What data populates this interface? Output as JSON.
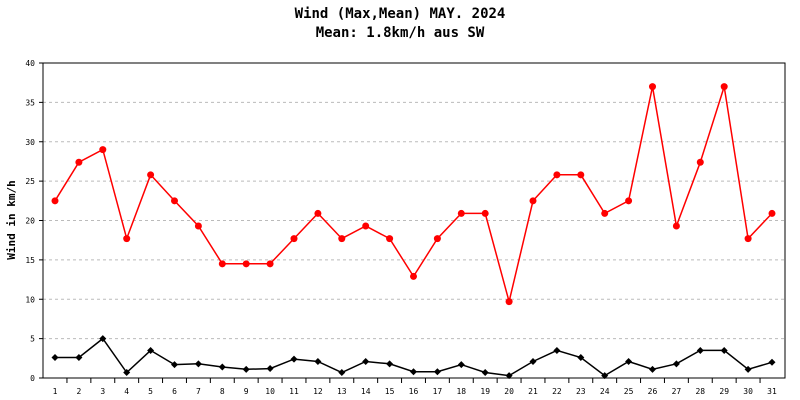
{
  "chart_data": {
    "type": "line",
    "title": "Wind (Max,Mean) MAY. 2024",
    "subtitle": "Mean: 1.8km/h aus SW",
    "xlabel": "",
    "ylabel": "Wind in km/h",
    "ylim": [
      0,
      40
    ],
    "yticks": [
      0,
      5,
      10,
      15,
      20,
      25,
      30,
      35,
      40
    ],
    "grid": true,
    "categories": [
      "1",
      "2",
      "3",
      "4",
      "5",
      "6",
      "7",
      "8",
      "9",
      "10",
      "11",
      "12",
      "13",
      "14",
      "15",
      "16",
      "17",
      "18",
      "19",
      "20",
      "21",
      "22",
      "23",
      "24",
      "25",
      "26",
      "27",
      "28",
      "29",
      "30",
      "31"
    ],
    "series": [
      {
        "color": "#ff0000",
        "marker": "circle",
        "values": [
          22.5,
          27.4,
          29.0,
          17.7,
          25.8,
          22.5,
          19.3,
          14.5,
          14.5,
          14.5,
          17.7,
          20.9,
          17.7,
          19.3,
          17.7,
          12.9,
          17.7,
          20.9,
          20.9,
          9.7,
          22.5,
          25.8,
          25.8,
          20.9,
          22.5,
          37.0,
          19.3,
          27.4,
          37.0,
          17.7,
          20.9
        ]
      },
      {
        "color": "#000000",
        "marker": "diamond",
        "values": [
          2.6,
          2.6,
          5.0,
          0.7,
          3.5,
          1.7,
          1.8,
          1.4,
          1.1,
          1.2,
          2.4,
          2.1,
          0.7,
          2.1,
          1.8,
          0.8,
          0.8,
          1.7,
          0.7,
          0.3,
          2.1,
          3.5,
          2.6,
          0.3,
          2.1,
          1.1,
          1.8,
          3.5,
          3.5,
          1.1,
          2.0
        ]
      }
    ]
  }
}
